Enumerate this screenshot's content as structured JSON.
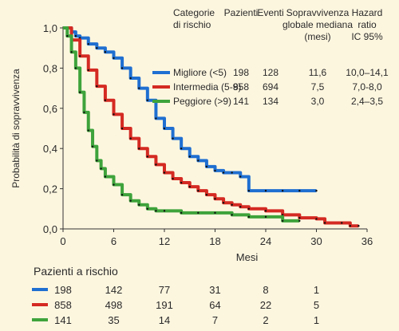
{
  "chart_data": {
    "type": "line",
    "title": "",
    "xlabel": "Mesi",
    "ylabel": "Probabilità di sopravvivenza",
    "xlim": [
      0,
      36
    ],
    "ylim": [
      0,
      1
    ],
    "xticks": [
      0,
      6,
      12,
      18,
      24,
      30,
      36
    ],
    "yticks": [
      0,
      0.2,
      0.4,
      0.6,
      0.8,
      1
    ],
    "xtick_labels": [
      "0",
      "6",
      "12",
      "18",
      "24",
      "30",
      "36"
    ],
    "ytick_labels": [
      "0,0",
      "0,2",
      "0,4",
      "0,6",
      "0,8",
      "1,0"
    ],
    "grid": false,
    "legend_placement": "top-right",
    "legend_headers": {
      "group": [
        "Categorie",
        "di rischio"
      ],
      "patients": "Pazienti",
      "events": "Eventi",
      "median": [
        "Sopravvivenza",
        "globale mediana",
        "(mesi)"
      ],
      "hr": [
        "Hazard",
        "ratio",
        "IC 95%"
      ]
    },
    "series": [
      {
        "name": "Migliore (<5)",
        "color": "#1f6fd1",
        "patients": "198",
        "events": "128",
        "median": "11,6",
        "hr_ci": "10,0–14,1",
        "x": [
          0,
          1,
          1.5,
          2,
          3,
          4,
          5,
          6,
          7,
          8,
          9,
          10,
          11,
          12,
          13,
          14,
          15,
          16,
          17,
          18,
          19,
          20,
          21,
          22,
          24,
          26,
          28,
          30
        ],
        "y": [
          1.0,
          0.98,
          0.96,
          0.95,
          0.92,
          0.9,
          0.88,
          0.85,
          0.8,
          0.75,
          0.7,
          0.64,
          0.55,
          0.5,
          0.45,
          0.4,
          0.36,
          0.34,
          0.31,
          0.29,
          0.28,
          0.28,
          0.26,
          0.19,
          0.19,
          0.19,
          0.19,
          0.19
        ]
      },
      {
        "name": "Intermedia (5-9)",
        "color": "#d42a22",
        "patients": "858",
        "events": "694",
        "median": "7,5",
        "hr_ci": "7,0-8,0",
        "x": [
          0,
          1,
          2,
          3,
          4,
          5,
          6,
          7,
          8,
          9,
          10,
          11,
          12,
          13,
          14,
          15,
          16,
          17,
          18,
          19,
          20,
          21,
          22,
          24,
          26,
          28,
          30,
          31,
          33,
          34,
          35
        ],
        "y": [
          1.0,
          0.94,
          0.86,
          0.79,
          0.71,
          0.64,
          0.57,
          0.5,
          0.45,
          0.4,
          0.36,
          0.32,
          0.28,
          0.25,
          0.23,
          0.21,
          0.19,
          0.17,
          0.15,
          0.13,
          0.12,
          0.11,
          0.1,
          0.09,
          0.07,
          0.055,
          0.05,
          0.03,
          0.03,
          0.015,
          0.015
        ]
      },
      {
        "name": "Peggiore (>9)",
        "color": "#3ea33b",
        "patients": "141",
        "events": "134",
        "median": "3,0",
        "hr_ci": "2,4–3,5",
        "x": [
          0,
          0.5,
          1,
          1.5,
          2,
          2.5,
          3,
          3.5,
          4,
          4.5,
          5,
          6,
          7,
          8,
          9,
          10,
          11,
          12,
          14,
          16,
          18,
          20,
          22,
          24,
          26,
          28
        ],
        "y": [
          1.0,
          0.96,
          0.88,
          0.8,
          0.68,
          0.58,
          0.49,
          0.41,
          0.34,
          0.3,
          0.26,
          0.22,
          0.17,
          0.14,
          0.12,
          0.1,
          0.09,
          0.09,
          0.08,
          0.08,
          0.08,
          0.07,
          0.06,
          0.06,
          0.04,
          0.04
        ]
      }
    ]
  },
  "risk_table": {
    "title": "Pazienti a rischio",
    "times": [
      0,
      6,
      12,
      18,
      24,
      30
    ],
    "rows": [
      {
        "color": "#1f6fd1",
        "values": [
          "198",
          "142",
          "77",
          "31",
          "8",
          "1"
        ]
      },
      {
        "color": "#d42a22",
        "values": [
          "858",
          "498",
          "191",
          "64",
          "22",
          "5"
        ]
      },
      {
        "color": "#3ea33b",
        "values": [
          "141",
          "35",
          "14",
          "7",
          "2",
          "1"
        ]
      }
    ]
  }
}
